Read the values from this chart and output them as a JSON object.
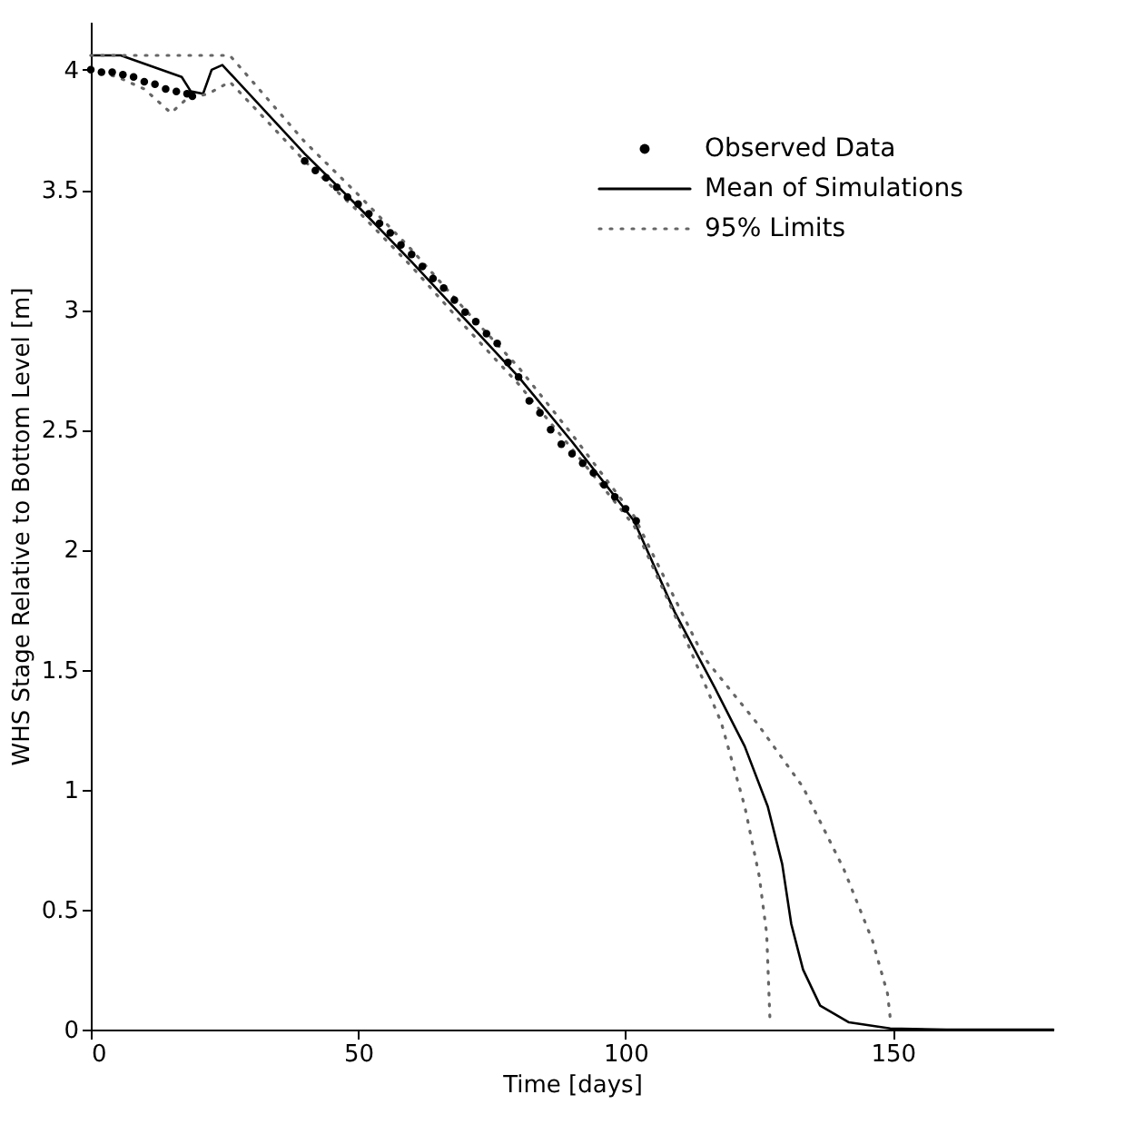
{
  "chart_data": {
    "type": "line",
    "xlabel": "Time [days]",
    "ylabel": "WHS Stage Relative to Bottom Level [m]",
    "xlim": [
      0,
      180
    ],
    "ylim": [
      0,
      4.2
    ],
    "xticks": [
      0,
      50,
      100,
      150
    ],
    "yticks": [
      0,
      0.5,
      1,
      1.5,
      2,
      2.5,
      3,
      3.5,
      4
    ],
    "grid": false,
    "legend": "top right",
    "series": [
      {
        "name": "Observed Data",
        "type": "scatter",
        "marker": "circle",
        "color": "#000000",
        "x": [
          0,
          2,
          4,
          6,
          8,
          10,
          12,
          14,
          16,
          18,
          19,
          40,
          42,
          44,
          46,
          48,
          50,
          52,
          54,
          56,
          58,
          60,
          62,
          64,
          66,
          68,
          70,
          72,
          74,
          76,
          78,
          80,
          82,
          84,
          86,
          88,
          90,
          92,
          94,
          96,
          98,
          100,
          102
        ],
        "values": [
          4.0,
          3.99,
          3.99,
          3.98,
          3.97,
          3.95,
          3.94,
          3.92,
          3.91,
          3.9,
          3.89,
          3.62,
          3.58,
          3.55,
          3.51,
          3.47,
          3.44,
          3.4,
          3.36,
          3.32,
          3.27,
          3.23,
          3.18,
          3.13,
          3.09,
          3.04,
          2.99,
          2.95,
          2.9,
          2.86,
          2.78,
          2.72,
          2.62,
          2.57,
          2.5,
          2.44,
          2.4,
          2.36,
          2.32,
          2.27,
          2.22,
          2.17,
          2.12
        ]
      },
      {
        "name": "Mean of Simulations",
        "line_style": "solid",
        "marker": "none",
        "color": "#000000",
        "x": [
          0,
          5.6,
          17,
          18.7,
          21,
          22.6,
          24.6,
          40,
          50,
          60,
          70,
          80,
          90,
          101.6,
          109.2,
          116.8,
          122.3,
          126.6,
          129.3,
          131,
          133.2,
          136.4,
          141.8,
          149.5,
          160,
          180
        ],
        "values": [
          4.06,
          4.06,
          3.97,
          3.91,
          3.9,
          4.0,
          4.02,
          3.65,
          3.43,
          3.2,
          2.96,
          2.72,
          2.45,
          2.12,
          1.74,
          1.42,
          1.18,
          0.93,
          0.69,
          0.44,
          0.25,
          0.1,
          0.03,
          0.005,
          0,
          0
        ]
      },
      {
        "name": "95% Limits",
        "line_style": "dotted",
        "marker": "none",
        "color": "#666666",
        "x": [
          0,
          26,
          40,
          50,
          60,
          70,
          80,
          90,
          101.6,
          104.9,
          114.7,
          124.5,
          133.2,
          140.8,
          146.2,
          149,
          149.5
        ],
        "values": [
          4.06,
          4.06,
          3.7,
          3.48,
          3.25,
          3.0,
          2.76,
          2.48,
          2.14,
          1.99,
          1.55,
          1.28,
          1.01,
          0.67,
          0.37,
          0.15,
          0.05
        ]
      },
      {
        "line_style": "dotted",
        "marker": "none",
        "color": "#666666",
        "x": [
          0,
          5,
          10,
          15,
          18,
          22,
          26,
          40,
          50,
          60,
          70,
          80,
          90,
          101.6,
          111.4,
          117.9,
          122.3,
          125,
          126.4,
          127
        ],
        "values": [
          4.0,
          3.97,
          3.92,
          3.82,
          3.88,
          3.9,
          3.95,
          3.62,
          3.41,
          3.18,
          2.93,
          2.69,
          2.42,
          2.1,
          1.62,
          1.28,
          0.93,
          0.64,
          0.4,
          0.05
        ]
      }
    ]
  }
}
